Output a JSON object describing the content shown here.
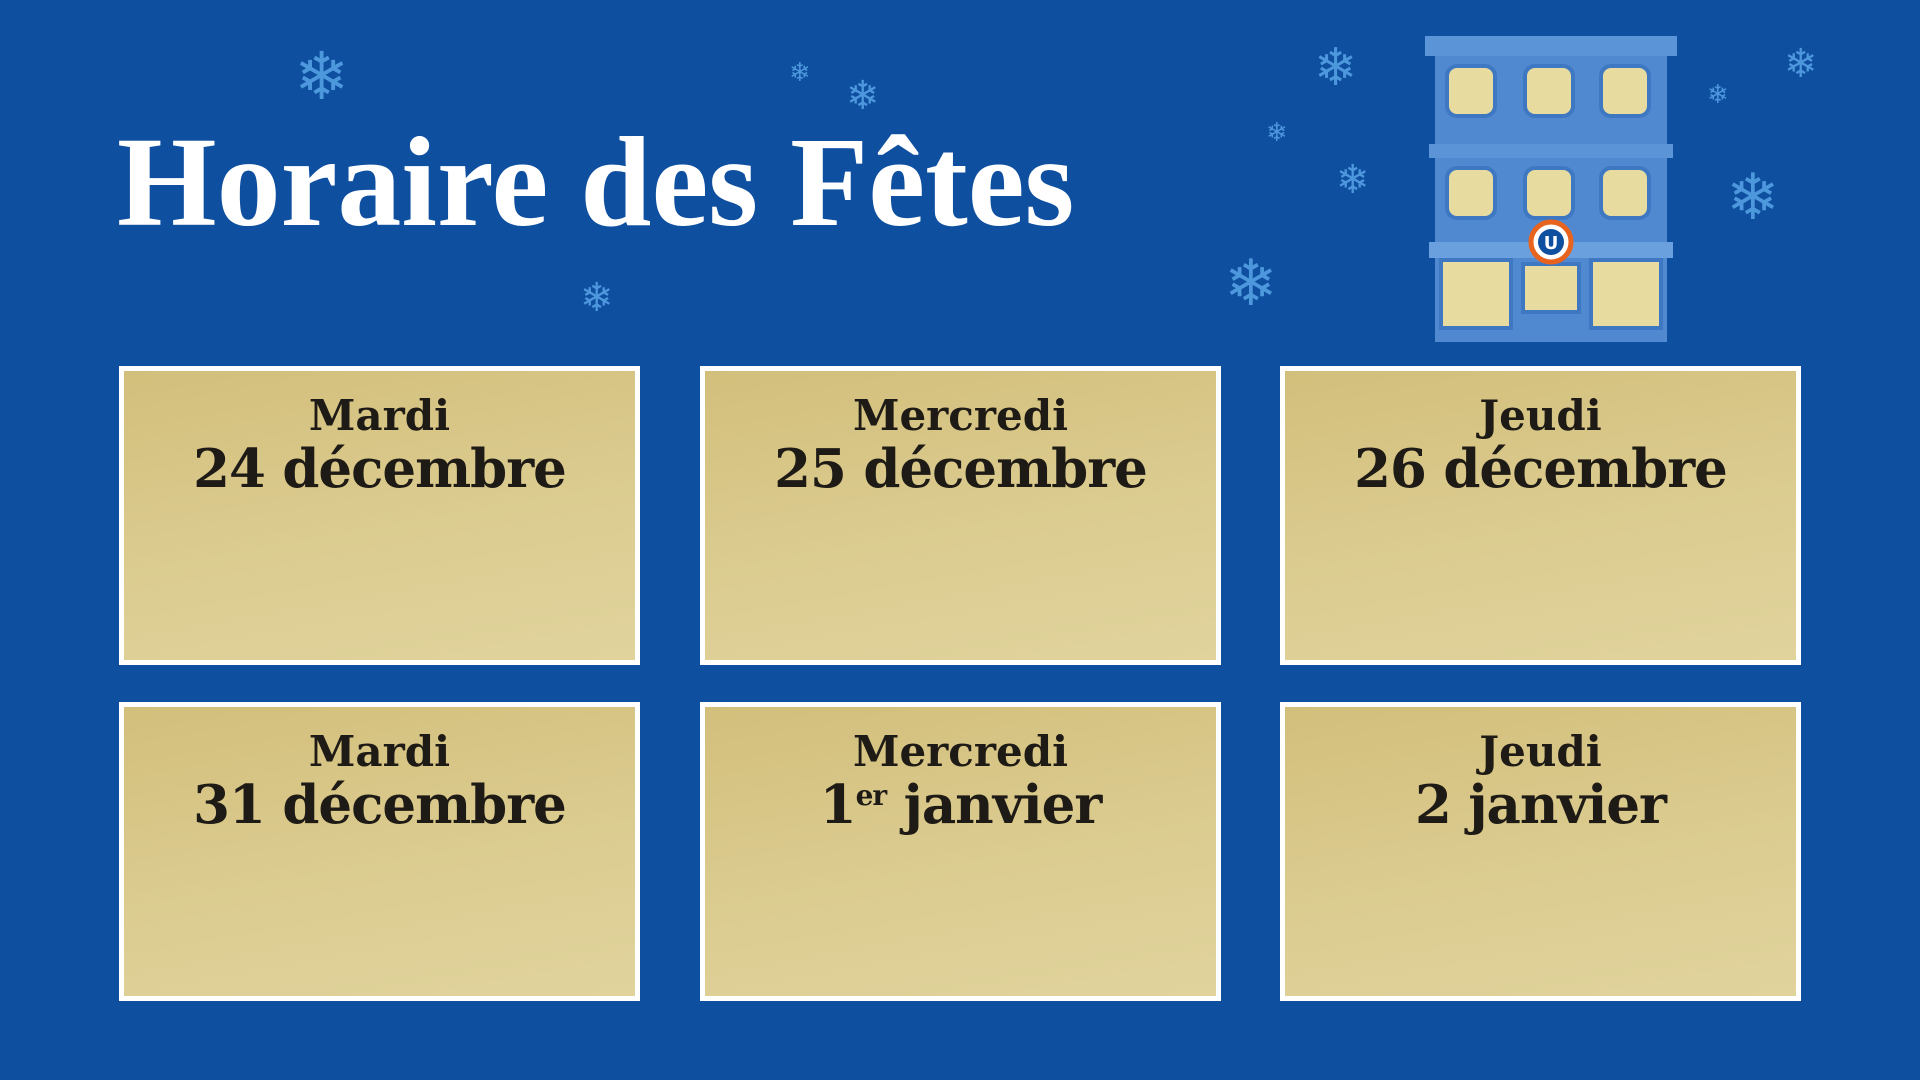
{
  "title": "Horaire des Fêtes",
  "colors": {
    "background": "#0e4fa0",
    "card": "#d8c888",
    "card_border": "#ffffff",
    "snowflake": "#4d97dc",
    "text": "#1e1a15"
  },
  "logo": {
    "letter": "U",
    "icon": "storefront-building-with-u-logo"
  },
  "cards": [
    {
      "day": "Mardi",
      "date": "24 décembre"
    },
    {
      "day": "Mercredi",
      "date": "25 décembre"
    },
    {
      "day": "Jeudi",
      "date": "26 décembre"
    },
    {
      "day": "Mardi",
      "date": "31 décembre"
    },
    {
      "day": "Mercredi",
      "date_num": "1",
      "date_sup": "er",
      "date_rest": " janvier"
    },
    {
      "day": "Jeudi",
      "date": "2 janvier"
    }
  ]
}
